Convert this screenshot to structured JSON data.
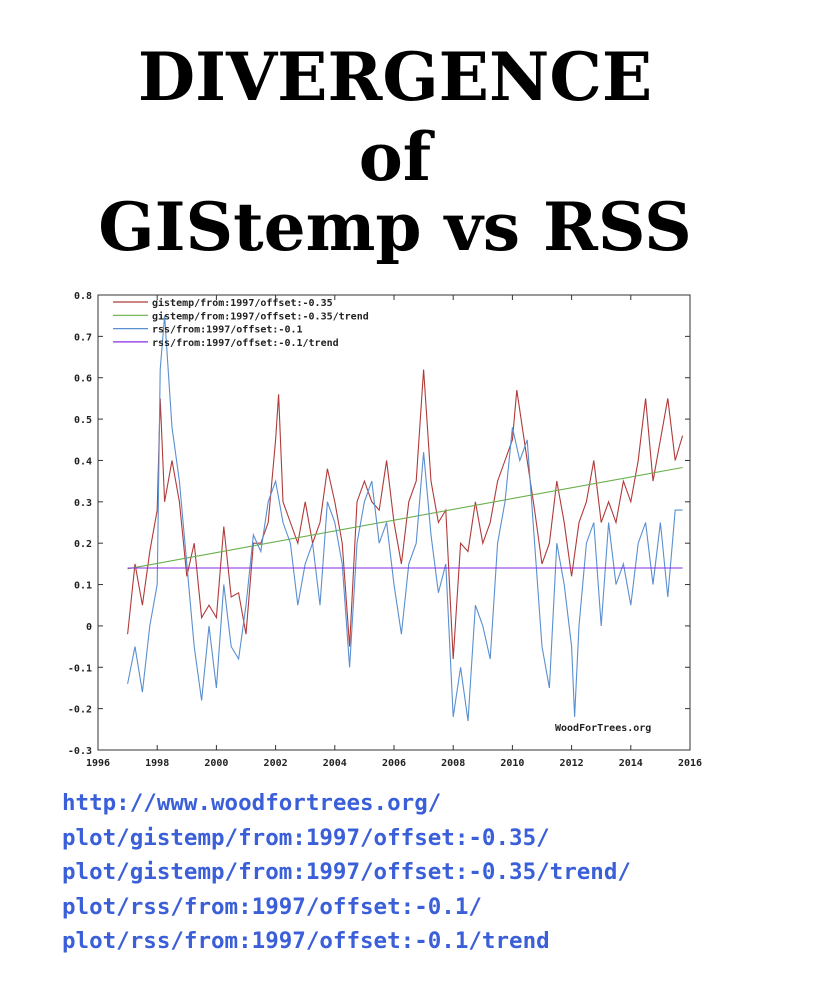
{
  "title": {
    "line1": "DIVERGENCE",
    "line2": "of",
    "line3": "GIStemp vs RSS"
  },
  "urls": [
    "http://www.woodfortrees.org/",
    "plot/gistemp/from:1997/offset:-0.35/",
    "plot/gistemp/from:1997/offset:-0.35/trend/",
    "plot/rss/from:1997/offset:-0.1/",
    "plot/rss/from:1997/offset:-0.1/trend"
  ],
  "chart_data": {
    "type": "line",
    "xlim": [
      1996,
      2016
    ],
    "ylim": [
      -0.3,
      0.8
    ],
    "xticks": [
      1996,
      1998,
      2000,
      2002,
      2004,
      2006,
      2008,
      2010,
      2012,
      2014,
      2016
    ],
    "yticks": [
      0.8,
      0.7,
      0.6,
      0.5,
      0.4,
      0.3,
      0.2,
      0.1,
      0,
      -0.1,
      -0.2,
      -0.3
    ],
    "ytick_labels": [
      "0.8",
      "0.7",
      "0.6",
      "0.5",
      "0.4",
      "0.3",
      "0.2",
      "0.1",
      "0",
      "-0.1",
      "-0.2",
      "-0.3"
    ],
    "legend_position": "top-left",
    "watermark": "WoodForTrees.org",
    "series": [
      {
        "name": "gistemp/from:1997/offset:-0.35",
        "color": "#b03a3a",
        "x": [
          1997.0,
          1997.25,
          1997.5,
          1997.75,
          1998.0,
          1998.1,
          1998.25,
          1998.5,
          1998.75,
          1999.0,
          1999.25,
          1999.5,
          1999.75,
          2000.0,
          2000.25,
          2000.5,
          2000.75,
          2001.0,
          2001.25,
          2001.5,
          2001.75,
          2002.0,
          2002.1,
          2002.25,
          2002.5,
          2002.75,
          2003.0,
          2003.25,
          2003.5,
          2003.75,
          2004.0,
          2004.25,
          2004.5,
          2004.75,
          2005.0,
          2005.25,
          2005.5,
          2005.75,
          2006.0,
          2006.25,
          2006.5,
          2006.75,
          2007.0,
          2007.25,
          2007.5,
          2007.75,
          2008.0,
          2008.25,
          2008.5,
          2008.75,
          2009.0,
          2009.25,
          2009.5,
          2009.75,
          2010.0,
          2010.15,
          2010.5,
          2010.75,
          2011.0,
          2011.25,
          2011.5,
          2011.75,
          2012.0,
          2012.25,
          2012.5,
          2012.75,
          2013.0,
          2013.25,
          2013.5,
          2013.75,
          2014.0,
          2014.25,
          2014.5,
          2014.75,
          2015.0,
          2015.25,
          2015.5,
          2015.75
        ],
        "y": [
          -0.02,
          0.15,
          0.05,
          0.18,
          0.28,
          0.55,
          0.3,
          0.4,
          0.3,
          0.12,
          0.2,
          0.02,
          0.05,
          0.02,
          0.24,
          0.07,
          0.08,
          -0.02,
          0.2,
          0.2,
          0.25,
          0.45,
          0.56,
          0.3,
          0.25,
          0.2,
          0.3,
          0.2,
          0.25,
          0.38,
          0.3,
          0.2,
          -0.05,
          0.3,
          0.35,
          0.3,
          0.28,
          0.4,
          0.25,
          0.15,
          0.3,
          0.35,
          0.62,
          0.35,
          0.25,
          0.28,
          -0.08,
          0.2,
          0.18,
          0.3,
          0.2,
          0.25,
          0.35,
          0.4,
          0.45,
          0.57,
          0.4,
          0.28,
          0.15,
          0.2,
          0.35,
          0.25,
          0.12,
          0.25,
          0.3,
          0.4,
          0.25,
          0.3,
          0.25,
          0.35,
          0.3,
          0.4,
          0.55,
          0.35,
          0.45,
          0.55,
          0.4,
          0.46
        ]
      },
      {
        "name": "gistemp/from:1997/offset:-0.35/trend",
        "color": "#6ab04c",
        "x": [
          1997.0,
          2015.75
        ],
        "y": [
          0.138,
          0.383
        ]
      },
      {
        "name": "rss/from:1997/offset:-0.1",
        "color": "#5a8fd0",
        "x": [
          1997.0,
          1997.25,
          1997.5,
          1997.75,
          1998.0,
          1998.1,
          1998.25,
          1998.5,
          1998.75,
          1999.0,
          1999.25,
          1999.5,
          1999.75,
          2000.0,
          2000.25,
          2000.5,
          2000.75,
          2001.0,
          2001.25,
          2001.5,
          2001.75,
          2002.0,
          2002.25,
          2002.5,
          2002.75,
          2003.0,
          2003.25,
          2003.5,
          2003.75,
          2004.0,
          2004.25,
          2004.5,
          2004.75,
          2005.0,
          2005.25,
          2005.5,
          2005.75,
          2006.0,
          2006.25,
          2006.5,
          2006.75,
          2007.0,
          2007.25,
          2007.5,
          2007.75,
          2008.0,
          2008.25,
          2008.5,
          2008.75,
          2009.0,
          2009.25,
          2009.5,
          2009.75,
          2010.0,
          2010.25,
          2010.5,
          2010.75,
          2011.0,
          2011.25,
          2011.5,
          2011.75,
          2012.0,
          2012.1,
          2012.25,
          2012.5,
          2012.75,
          2013.0,
          2013.25,
          2013.5,
          2013.75,
          2014.0,
          2014.25,
          2014.5,
          2014.75,
          2015.0,
          2015.25,
          2015.5,
          2015.75
        ],
        "y": [
          -0.14,
          -0.05,
          -0.16,
          0.0,
          0.1,
          0.62,
          0.75,
          0.48,
          0.35,
          0.15,
          -0.05,
          -0.18,
          0.0,
          -0.15,
          0.1,
          -0.05,
          -0.08,
          0.05,
          0.22,
          0.18,
          0.3,
          0.35,
          0.25,
          0.2,
          0.05,
          0.15,
          0.2,
          0.05,
          0.3,
          0.25,
          0.15,
          -0.1,
          0.2,
          0.3,
          0.35,
          0.2,
          0.25,
          0.1,
          -0.02,
          0.15,
          0.2,
          0.42,
          0.22,
          0.08,
          0.15,
          -0.22,
          -0.1,
          -0.23,
          0.05,
          0.0,
          -0.08,
          0.2,
          0.3,
          0.48,
          0.4,
          0.45,
          0.2,
          -0.05,
          -0.15,
          0.2,
          0.1,
          -0.05,
          -0.22,
          0.0,
          0.2,
          0.25,
          0.0,
          0.25,
          0.1,
          0.15,
          0.05,
          0.2,
          0.25,
          0.1,
          0.25,
          0.07,
          0.28,
          0.28
        ]
      },
      {
        "name": "rss/from:1997/offset:-0.1/trend",
        "color": "#8a2be2",
        "x": [
          1997.0,
          2015.75
        ],
        "y": [
          0.14,
          0.14
        ]
      }
    ]
  }
}
